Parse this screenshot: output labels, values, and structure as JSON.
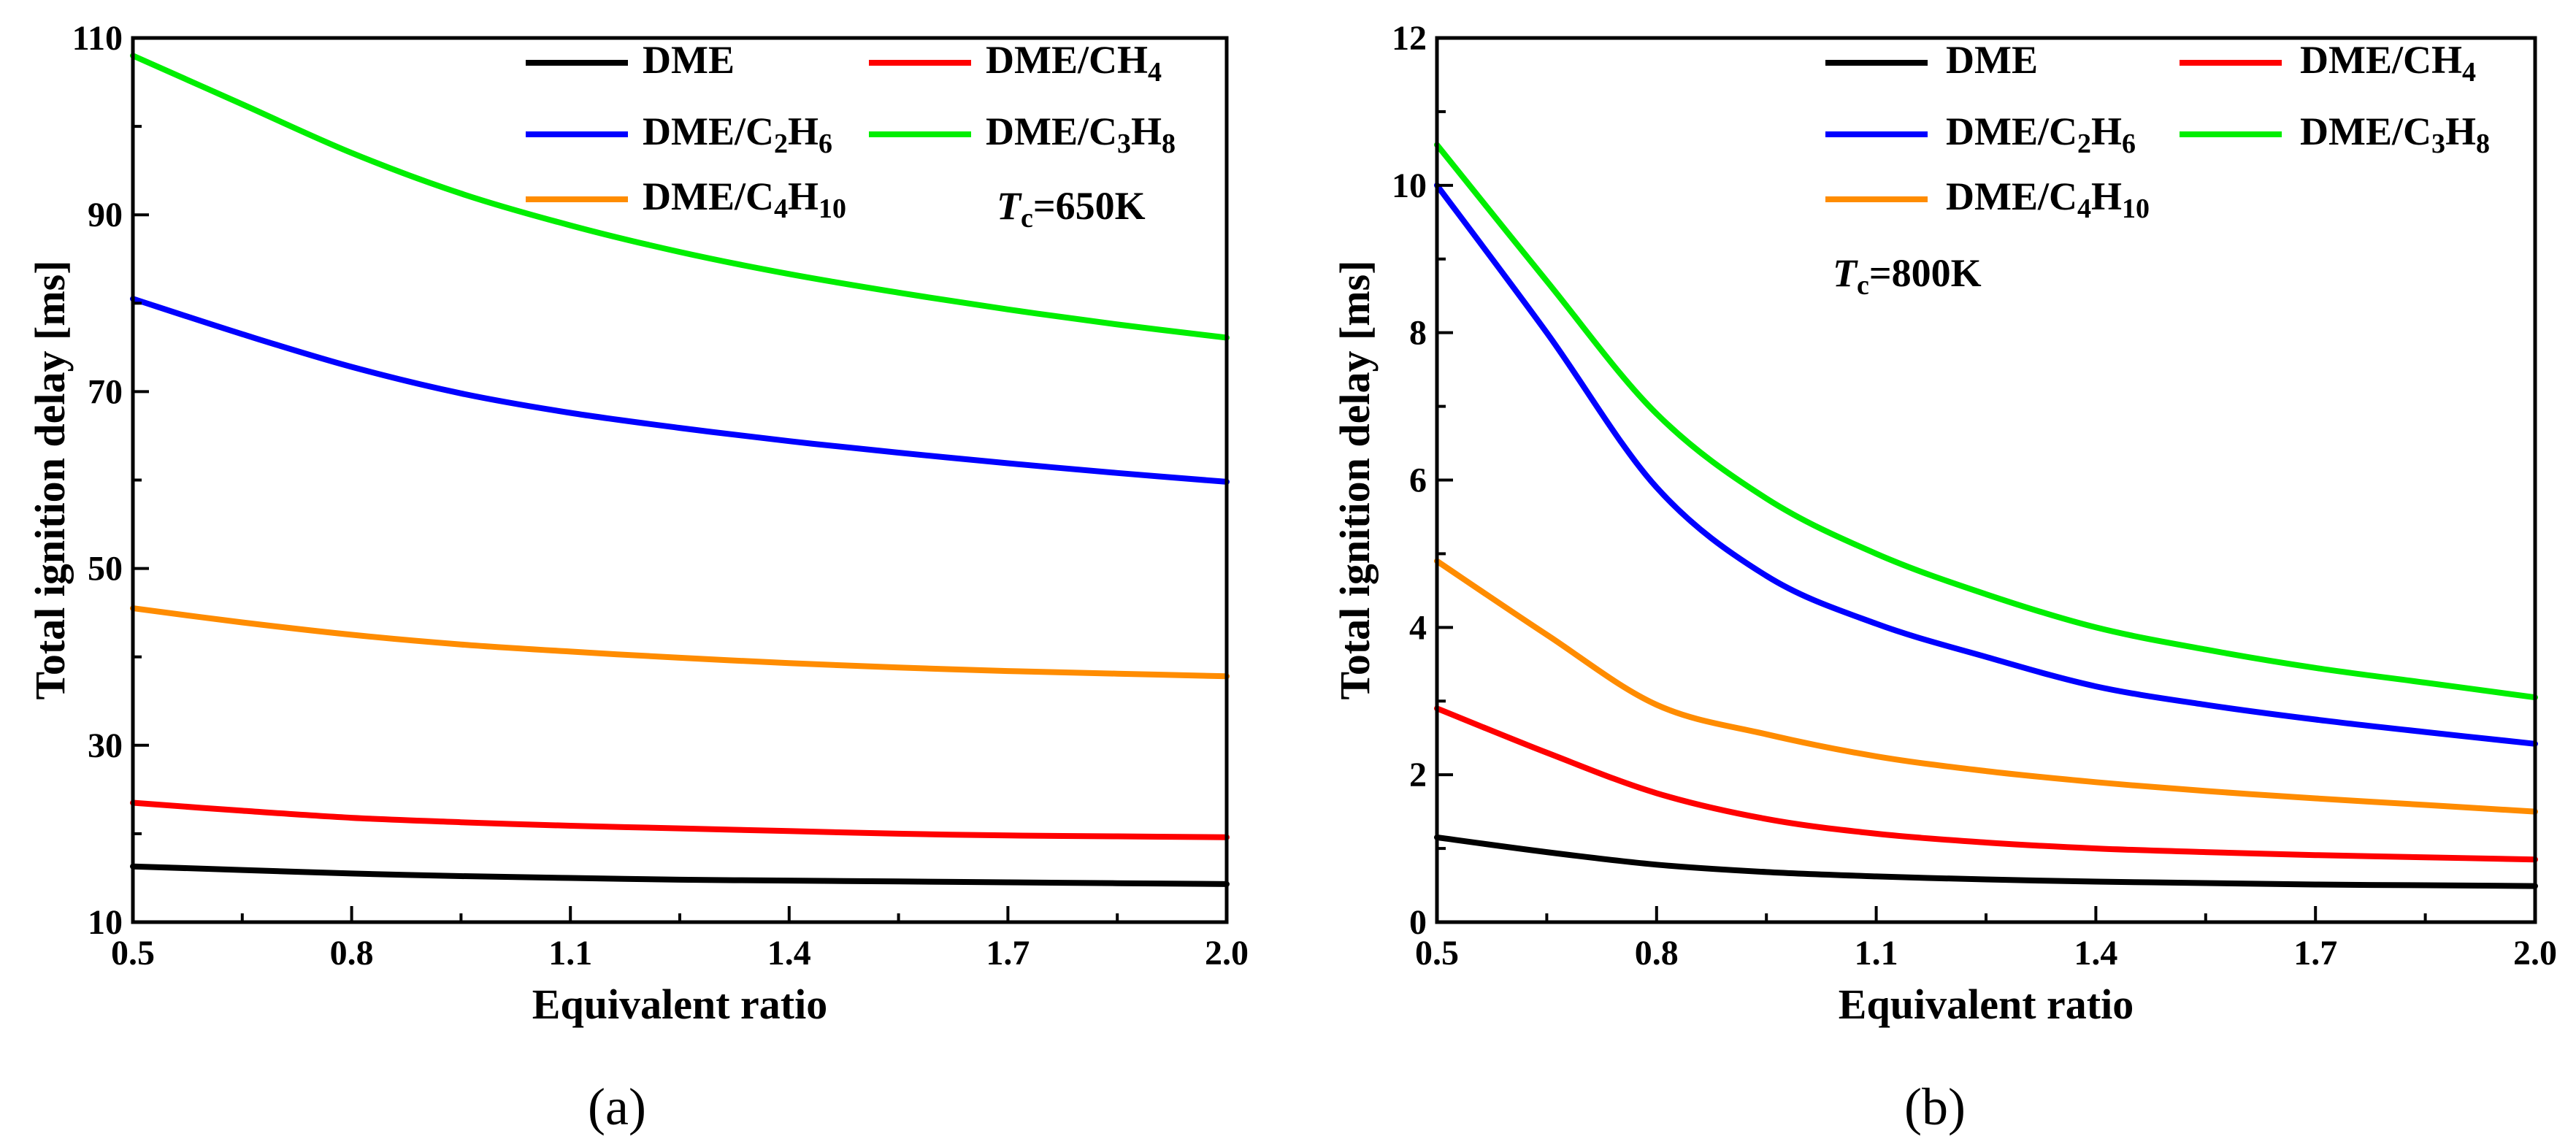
{
  "chart_data": [
    {
      "type": "line",
      "panel_label": "(a)",
      "xlabel": "Equivalent ratio",
      "ylabel": "Total ignition delay [ms]",
      "xlim": [
        0.5,
        2.0
      ],
      "ylim": [
        10,
        110
      ],
      "xticks": [
        "0.5",
        "0.8",
        "1.1",
        "1.4",
        "1.7",
        "2.0"
      ],
      "yticks": [
        "10",
        "30",
        "50",
        "70",
        "90",
        "110"
      ],
      "annotation": {
        "italic": "T",
        "sub": "c",
        "rest": "=650K"
      },
      "x": [
        0.5,
        0.65,
        0.8,
        0.95,
        1.1,
        1.25,
        1.4,
        1.55,
        1.7,
        1.85,
        2.0
      ],
      "series": [
        {
          "name": "DME",
          "name_sub": "",
          "name_tail": "",
          "color": "#000000",
          "values": [
            16.3,
            15.9,
            15.5,
            15.2,
            15.0,
            14.8,
            14.7,
            14.6,
            14.5,
            14.4,
            14.3
          ]
        },
        {
          "name": "DME/CH",
          "name_sub": "4",
          "name_tail": "",
          "color": "#ff0000",
          "values": [
            23.5,
            22.6,
            21.8,
            21.3,
            20.9,
            20.6,
            20.3,
            20.0,
            19.8,
            19.7,
            19.6
          ]
        },
        {
          "name": "DME/C",
          "name_sub": "2",
          "name_tail": "H",
          "name_sub2": "6",
          "color": "#0000ff",
          "values": [
            80.5,
            76.5,
            72.8,
            69.8,
            67.6,
            65.9,
            64.4,
            63.1,
            61.9,
            60.8,
            59.8
          ]
        },
        {
          "name": "DME/C",
          "name_sub": "3",
          "name_tail": "H",
          "name_sub2": "8",
          "color": "#00ee00",
          "values": [
            108.0,
            102.5,
            97.0,
            92.4,
            88.8,
            85.8,
            83.3,
            81.2,
            79.3,
            77.6,
            76.1
          ]
        },
        {
          "name": "DME/C",
          "name_sub": "4",
          "name_tail": "H",
          "name_sub2": "10",
          "color": "#ff8c00",
          "values": [
            45.5,
            43.9,
            42.5,
            41.4,
            40.6,
            39.9,
            39.3,
            38.8,
            38.4,
            38.1,
            37.8
          ]
        }
      ]
    },
    {
      "type": "line",
      "panel_label": "(b)",
      "xlabel": "Equivalent ratio",
      "ylabel": "Total ignition delay [ms]",
      "xlim": [
        0.5,
        2.0
      ],
      "ylim": [
        0,
        12
      ],
      "xticks": [
        "0.5",
        "0.8",
        "1.1",
        "1.4",
        "1.7",
        "2.0"
      ],
      "yticks": [
        "0",
        "2",
        "4",
        "6",
        "8",
        "10",
        "12"
      ],
      "annotation": {
        "italic": "T",
        "sub": "c",
        "rest": "=800K"
      },
      "x": [
        0.5,
        0.65,
        0.8,
        0.95,
        1.1,
        1.25,
        1.4,
        1.55,
        1.7,
        1.85,
        2.0
      ],
      "series": [
        {
          "name": "DME",
          "name_sub": "",
          "name_tail": "",
          "color": "#000000",
          "values": [
            1.15,
            0.95,
            0.78,
            0.68,
            0.62,
            0.58,
            0.55,
            0.53,
            0.51,
            0.5,
            0.49
          ]
        },
        {
          "name": "DME/CH",
          "name_sub": "4",
          "name_tail": "",
          "color": "#ff0000",
          "values": [
            2.9,
            2.3,
            1.75,
            1.4,
            1.2,
            1.08,
            1.0,
            0.95,
            0.91,
            0.88,
            0.85
          ]
        },
        {
          "name": "DME/C",
          "name_sub": "2",
          "name_tail": "H",
          "name_sub2": "6",
          "color": "#0000ff",
          "values": [
            10.0,
            8.0,
            5.9,
            4.7,
            4.05,
            3.6,
            3.2,
            2.95,
            2.75,
            2.58,
            2.42
          ]
        },
        {
          "name": "DME/C",
          "name_sub": "3",
          "name_tail": "H",
          "name_sub2": "8",
          "color": "#00ee00",
          "values": [
            10.55,
            8.7,
            6.9,
            5.75,
            5.0,
            4.45,
            4.0,
            3.7,
            3.45,
            3.25,
            3.05
          ]
        },
        {
          "name": "DME/C",
          "name_sub": "4",
          "name_tail": "H",
          "name_sub2": "10",
          "color": "#ff8c00",
          "values": [
            4.9,
            3.9,
            2.95,
            2.55,
            2.25,
            2.05,
            1.9,
            1.78,
            1.68,
            1.59,
            1.5
          ]
        }
      ]
    }
  ]
}
